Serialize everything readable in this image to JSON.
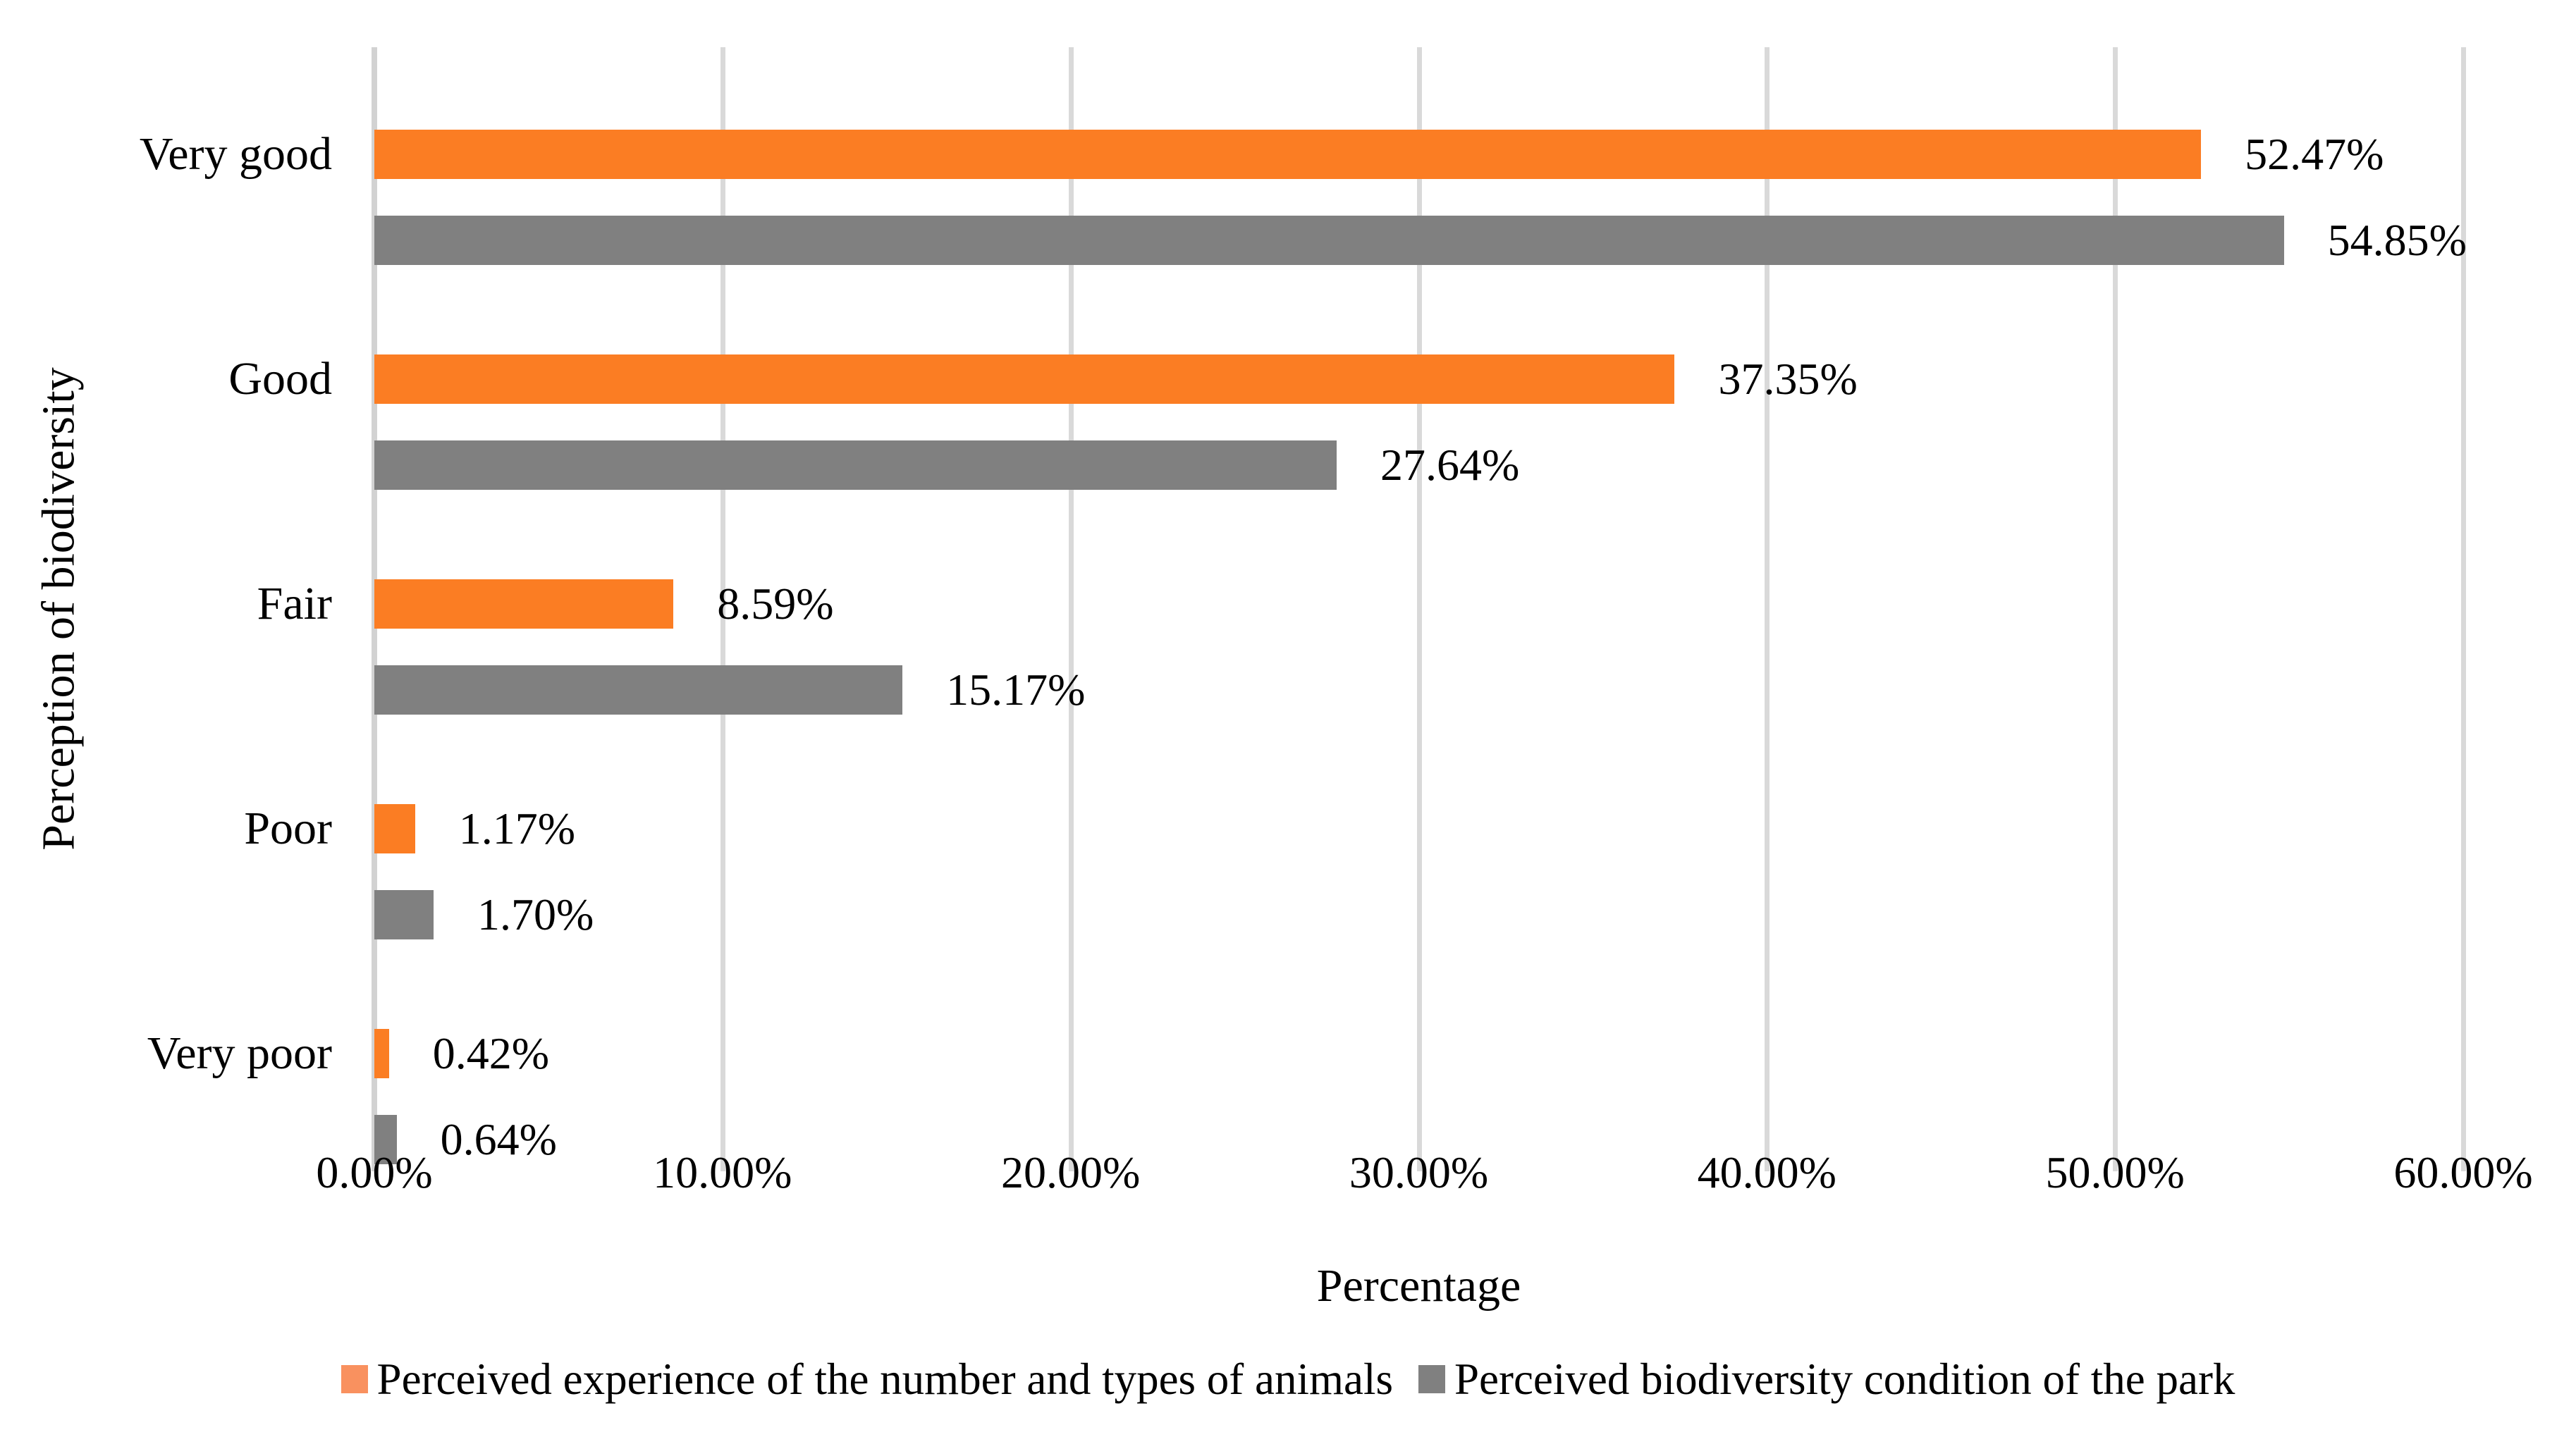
{
  "chart_data": {
    "type": "bar",
    "orientation": "horizontal",
    "title": "",
    "categories": [
      "Very good",
      "Good",
      "Fair",
      "Poor",
      "Very poor"
    ],
    "series": [
      {
        "name": "Perceived experience of the number and types of animals",
        "color": "#FB7D23",
        "legend_color": "#F9915F",
        "values": [
          52.47,
          37.35,
          8.59,
          1.17,
          0.42
        ],
        "labels": [
          "52.47%",
          "37.35%",
          "8.59%",
          "1.17%",
          "0.42%"
        ]
      },
      {
        "name": "Perceived biodiversity condition of the park",
        "color": "#808080",
        "legend_color": "#808080",
        "values": [
          54.85,
          27.64,
          15.17,
          1.7,
          0.64
        ],
        "labels": [
          "54.85%",
          "27.64%",
          "15.17%",
          "1.70%",
          "0.64%"
        ]
      }
    ],
    "xlabel": "Percentage",
    "ylabel": "Perception of biodiversity",
    "xlim": [
      0,
      60
    ],
    "x_ticks": [
      {
        "value": 0,
        "label": "0.00%"
      },
      {
        "value": 10,
        "label": "10.00%"
      },
      {
        "value": 20,
        "label": "20.00%"
      },
      {
        "value": 30,
        "label": "30.00%"
      },
      {
        "value": 40,
        "label": "40.00%"
      },
      {
        "value": 50,
        "label": "50.00%"
      },
      {
        "value": 60,
        "label": "60.00%"
      }
    ],
    "grid": true,
    "legend_position": "bottom",
    "colors": {
      "gridline": "#D9D9D9",
      "axis_line": "#D2D2D2",
      "background": "#FFFFFF",
      "text": "#000000"
    }
  }
}
